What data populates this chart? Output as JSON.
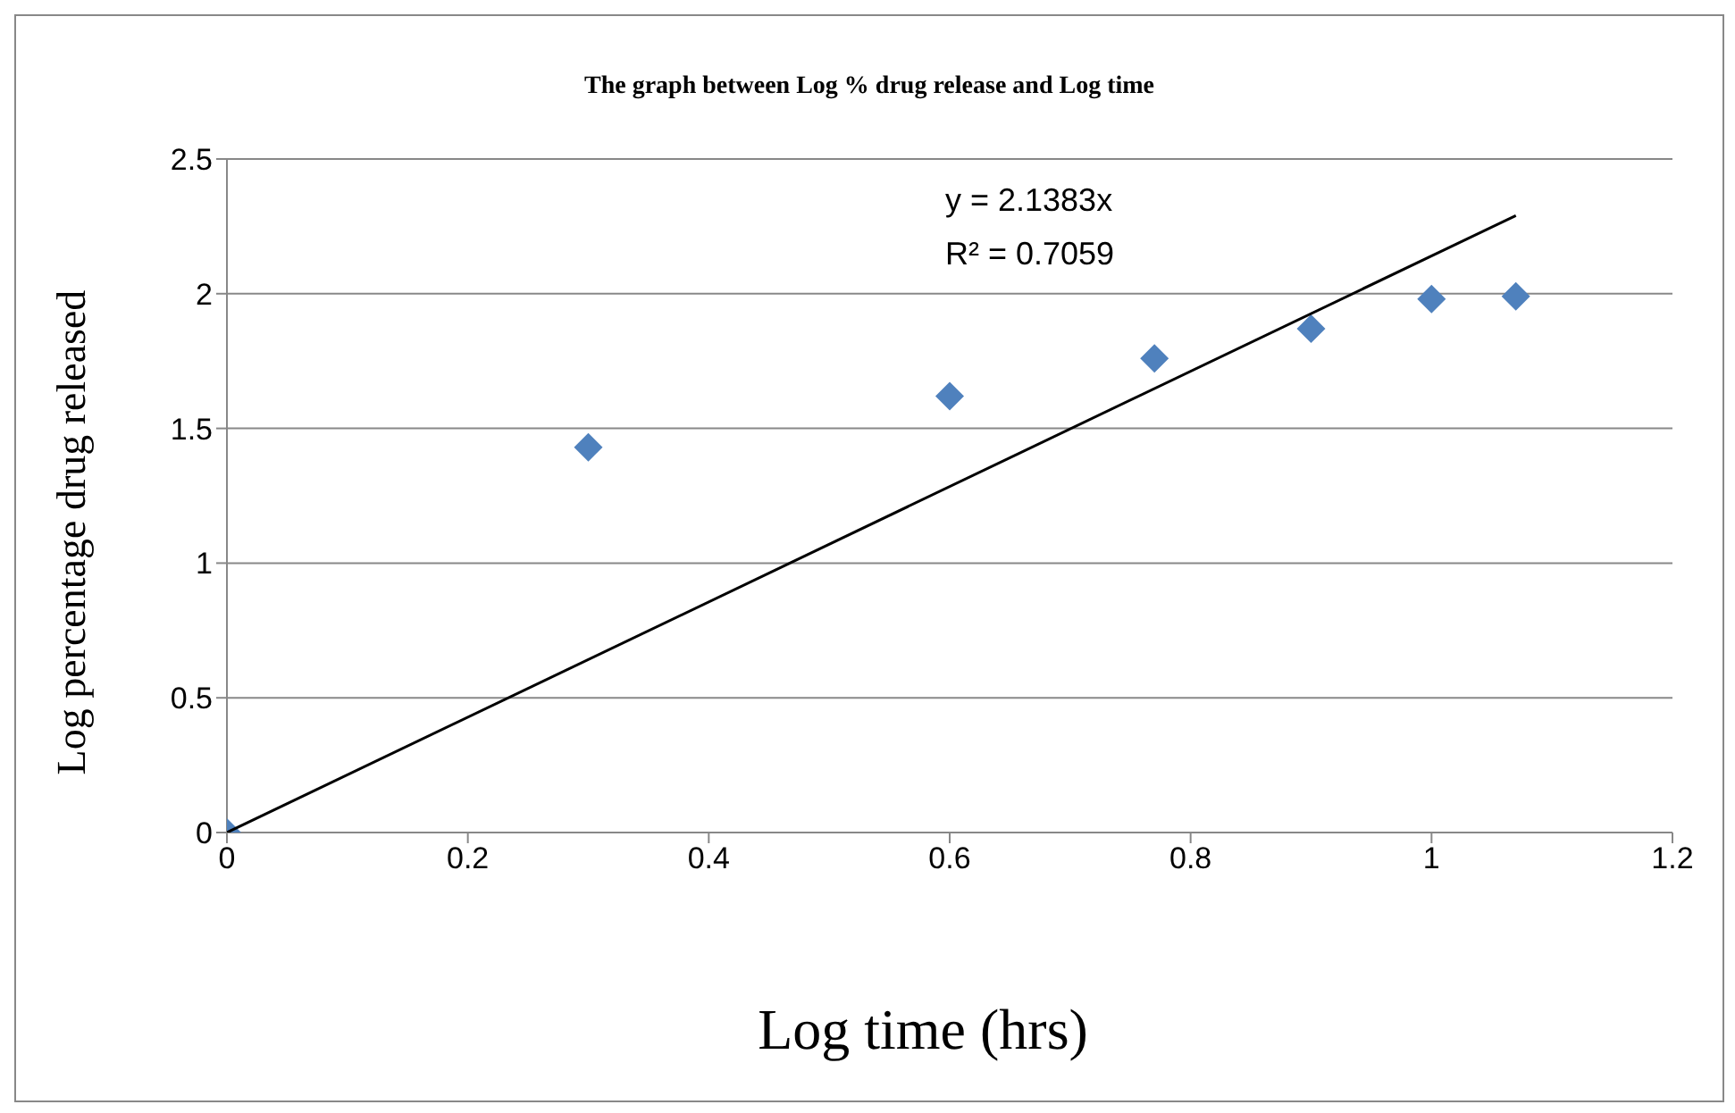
{
  "chart_data": {
    "type": "scatter",
    "title": "The graph between Log % drug release and Log time",
    "xlabel": "Log time (hrs)",
    "ylabel": "Log percentage drug released",
    "annotations": [
      "y = 2.1383x",
      "R² = 0.7059"
    ],
    "x": [
      0,
      0.3,
      0.6,
      0.77,
      0.9,
      1,
      1.07
    ],
    "series": [
      {
        "type": "scatter",
        "color": "#4f81bd",
        "marker": "diamond",
        "values": [
          0,
          1.43,
          1.62,
          1.76,
          1.87,
          1.98,
          1.99
        ]
      },
      {
        "type": "line",
        "color": "#000000",
        "marker": "none",
        "line_style": "solid",
        "x": [
          0,
          1.07
        ],
        "values": [
          0,
          2.29
        ]
      }
    ],
    "xlim": [
      0,
      1.2
    ],
    "xticks": [
      0,
      0.2,
      0.4,
      0.6,
      0.8,
      1,
      1.2
    ],
    "ylim": [
      0,
      2.5
    ],
    "yticks": [
      0,
      0.5,
      1,
      1.5,
      2,
      2.5
    ],
    "grid": "y",
    "legend": false
  }
}
